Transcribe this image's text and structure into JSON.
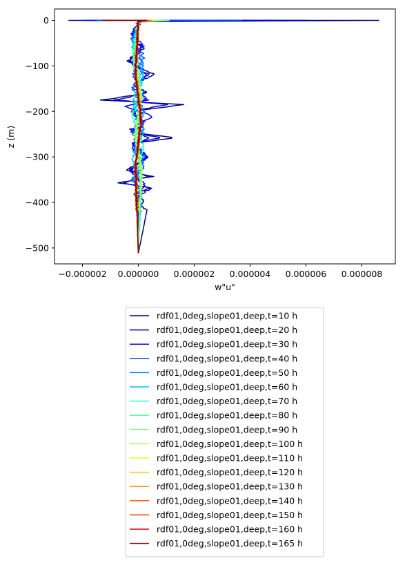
{
  "chart_data": {
    "type": "line",
    "title": "",
    "xlabel": "w\"u\"",
    "ylabel": "z (m)",
    "xlim": [
      -3e-06,
      9.2e-06
    ],
    "ylim": [
      -535,
      25
    ],
    "xticks": [
      -2e-06,
      0.0,
      2e-06,
      4e-06,
      6e-06,
      8e-06
    ],
    "xtick_labels": [
      "−0.000002",
      "0.000000",
      "0.000002",
      "0.000004",
      "0.000006",
      "0.000008"
    ],
    "yticks": [
      0,
      -100,
      -200,
      -300,
      -400,
      -500
    ],
    "ytick_labels": [
      "0",
      "−100",
      "−200",
      "−300",
      "−400",
      "−500"
    ],
    "grid": false,
    "legend_position": "below plot, centered",
    "z_bottom": -512,
    "series": [
      {
        "name": "rdf01,0deg,slope01,deep,t=10 h",
        "color": "#00007f",
        "surface_x": [
          -2.5e-06,
          8.6e-06
        ],
        "x": [
          5e-08,
          -2e-07,
          1e-07,
          -4e-07,
          6e-07,
          -2e-07,
          3e-07,
          -1.3e-06,
          1.6e-06,
          -2e-07,
          2e-07,
          -3e-07,
          1.3e-06,
          -2e-07,
          3e-07,
          -4e-07,
          5e-07,
          -7e-07,
          5e-07,
          -2e-07,
          2e-07,
          1e-07,
          3e-07,
          0.0
        ],
        "z": [
          -5,
          -30,
          -60,
          -90,
          -120,
          -140,
          -160,
          -175,
          -185,
          -200,
          -230,
          -245,
          -258,
          -270,
          -300,
          -330,
          -343,
          -357,
          -368,
          -380,
          -395,
          -405,
          -420,
          -512
        ],
        "amp": 6e-08
      },
      {
        "name": "rdf01,0deg,slope01,deep,t=20 h",
        "color": "#0000c8",
        "surface_x": [
          -2e-06,
          6e-06
        ],
        "x": [
          0.0,
          -2e-07,
          1e-07,
          -3e-07,
          4e-07,
          -2e-07,
          3e-07,
          -8e-07,
          1e-06,
          -2e-07,
          2e-07,
          -3e-07,
          8e-07,
          -2e-07,
          3e-07,
          -3e-07,
          4e-07,
          -6e-07,
          4e-07,
          0.0,
          0.0
        ],
        "z": [
          -5,
          -30,
          -60,
          -90,
          -120,
          -140,
          -160,
          -175,
          -185,
          -200,
          -230,
          -245,
          -258,
          -270,
          -300,
          -330,
          -343,
          -357,
          -368,
          -390,
          -512
        ],
        "amp": 8e-08
      },
      {
        "name": "rdf01,0deg,slope01,deep,t=30 h",
        "color": "#0000ff",
        "surface_x": [
          -1.8e-06,
          5e-06
        ],
        "x": [
          0.0,
          -2e-07,
          2e-07,
          -3e-07,
          3e-07,
          -2e-07,
          3e-07,
          -5e-07,
          5e-07,
          -3e-07,
          4e-07,
          -3e-07,
          3e-07,
          -3e-07,
          2e-07,
          0.0,
          0.0
        ],
        "z": [
          -5,
          -30,
          -60,
          -90,
          -120,
          -150,
          -175,
          -190,
          -210,
          -240,
          -258,
          -280,
          -300,
          -330,
          -360,
          -380,
          -512
        ],
        "amp": 8e-08
      },
      {
        "name": "rdf01,0deg,slope01,deep,t=40 h",
        "color": "#004cff",
        "surface_x": [
          -1.5e-06,
          3.7e-06
        ],
        "x": [
          0.0,
          -2e-07,
          2e-07,
          -2e-07,
          2e-07,
          -2e-07,
          2e-07,
          -2e-07,
          2e-07,
          -2e-07,
          1e-07,
          0.0,
          0.0
        ],
        "z": [
          -5,
          -40,
          -80,
          -120,
          -160,
          -200,
          -240,
          -280,
          -320,
          -350,
          -370,
          -385,
          -512
        ],
        "amp": 7e-08
      },
      {
        "name": "rdf01,0deg,slope01,deep,t=50 h",
        "color": "#0080ff",
        "surface_x": [
          -1.2e-06,
          1e-06
        ],
        "x": [
          0.0,
          -2e-07,
          2e-07,
          -2e-07,
          2e-07,
          -2e-07,
          2e-07,
          -2e-07,
          1e-07,
          0.0
        ],
        "z": [
          -5,
          -50,
          -100,
          -150,
          -200,
          -250,
          -300,
          -350,
          -380,
          -512
        ],
        "amp": 6e-08
      },
      {
        "name": "rdf01,0deg,slope01,deep,t=60 h",
        "color": "#00c0ff",
        "surface_x": [
          -1e-06,
          9e-07
        ],
        "x": [
          0.0,
          -2e-07,
          2e-07,
          -2e-07,
          2e-07,
          -2e-07,
          1e-07,
          0.0
        ],
        "z": [
          -5,
          -60,
          -120,
          -180,
          -240,
          -300,
          -360,
          -512
        ],
        "amp": 6e-08
      },
      {
        "name": "rdf01,0deg,slope01,deep,t=70 h",
        "color": "#29ffce",
        "surface_x": [
          -9e-07,
          8e-07
        ],
        "x": [
          0.0,
          -2e-07,
          1e-07,
          -2e-07,
          2e-07,
          -1e-07,
          0.0
        ],
        "z": [
          -5,
          -70,
          -140,
          -210,
          -280,
          -340,
          -512
        ],
        "amp": 5e-08
      },
      {
        "name": "rdf01,0deg,slope01,deep,t=80 h",
        "color": "#5affa0",
        "surface_x": [
          -8e-07,
          7e-07
        ],
        "x": [
          0.0,
          -2e-07,
          1e-07,
          -1e-07,
          1e-07,
          0.0
        ],
        "z": [
          -5,
          -90,
          -170,
          -250,
          -330,
          -512
        ],
        "amp": 5e-08
      },
      {
        "name": "rdf01,0deg,slope01,deep,t=90 h",
        "color": "#7dff7a",
        "surface_x": [
          -8e-07,
          8e-07
        ],
        "x": [
          0.0,
          -1e-07,
          1e-07,
          -1e-07,
          1e-07,
          0.0
        ],
        "z": [
          -5,
          -90,
          -170,
          -250,
          -330,
          -512
        ],
        "amp": 5e-08
      },
      {
        "name": "rdf01,0deg,slope01,deep,t=100 h",
        "color": "#b0ff46",
        "surface_x": [
          -7e-07,
          1.1e-06
        ],
        "x": [
          0.0,
          -1e-07,
          1e-07,
          -1e-07,
          1e-07,
          0.0
        ],
        "z": [
          -5,
          -90,
          -170,
          -250,
          -330,
          -512
        ],
        "amp": 5e-08
      },
      {
        "name": "rdf01,0deg,slope01,deep,t=110 h",
        "color": "#e4ff13",
        "surface_x": [
          -7e-07,
          6e-07
        ],
        "x": [
          0.0,
          -1e-07,
          1e-07,
          -1e-07,
          0.0
        ],
        "z": [
          -5,
          -120,
          -220,
          -320,
          -512
        ],
        "amp": 4e-08
      },
      {
        "name": "rdf01,0deg,slope01,deep,t=120 h",
        "color": "#ffc400",
        "surface_x": [
          -7e-07,
          5e-07
        ],
        "x": [
          0.0,
          -1e-07,
          1e-07,
          -1e-07,
          0.0
        ],
        "z": [
          -5,
          -120,
          -220,
          -320,
          -512
        ],
        "amp": 4e-08
      },
      {
        "name": "rdf01,0deg,slope01,deep,t=130 h",
        "color": "#ff9400",
        "surface_x": [
          -7e-07,
          5e-07
        ],
        "x": [
          0.0,
          -1e-07,
          1e-07,
          -1e-07,
          0.0
        ],
        "z": [
          -5,
          -120,
          -220,
          -320,
          -512
        ],
        "amp": 4e-08
      },
      {
        "name": "rdf01,0deg,slope01,deep,t=140 h",
        "color": "#ff6800",
        "surface_x": [
          -8e-07,
          4e-07
        ],
        "x": [
          0.0,
          -1e-07,
          1e-07,
          -1e-07,
          0.0
        ],
        "z": [
          -5,
          -120,
          -220,
          -320,
          -512
        ],
        "amp": 4e-08
      },
      {
        "name": "rdf01,0deg,slope01,deep,t=150 h",
        "color": "#ff3000",
        "surface_x": [
          -8e-07,
          3e-07
        ],
        "x": [
          0.0,
          -1e-07,
          1e-07,
          -1e-07,
          0.0
        ],
        "z": [
          -5,
          -120,
          -220,
          -320,
          -512
        ],
        "amp": 4e-08
      },
      {
        "name": "rdf01,0deg,slope01,deep,t=160 h",
        "color": "#e40000",
        "surface_x": [
          -1.2e-06,
          3e-07
        ],
        "x": [
          0.0,
          -1e-07,
          1e-07,
          -1e-07,
          0.0
        ],
        "z": [
          -5,
          -120,
          -220,
          -320,
          -512
        ],
        "amp": 4e-08
      },
      {
        "name": "rdf01,0deg,slope01,deep,t=165 h",
        "color": "#7f0000",
        "surface_x": [
          -1.3e-06,
          3e-07
        ],
        "x": [
          0.0,
          -1e-07,
          1e-07,
          -1e-07,
          0.0
        ],
        "z": [
          -5,
          -120,
          -220,
          -320,
          -512
        ],
        "amp": 3e-08
      }
    ]
  }
}
